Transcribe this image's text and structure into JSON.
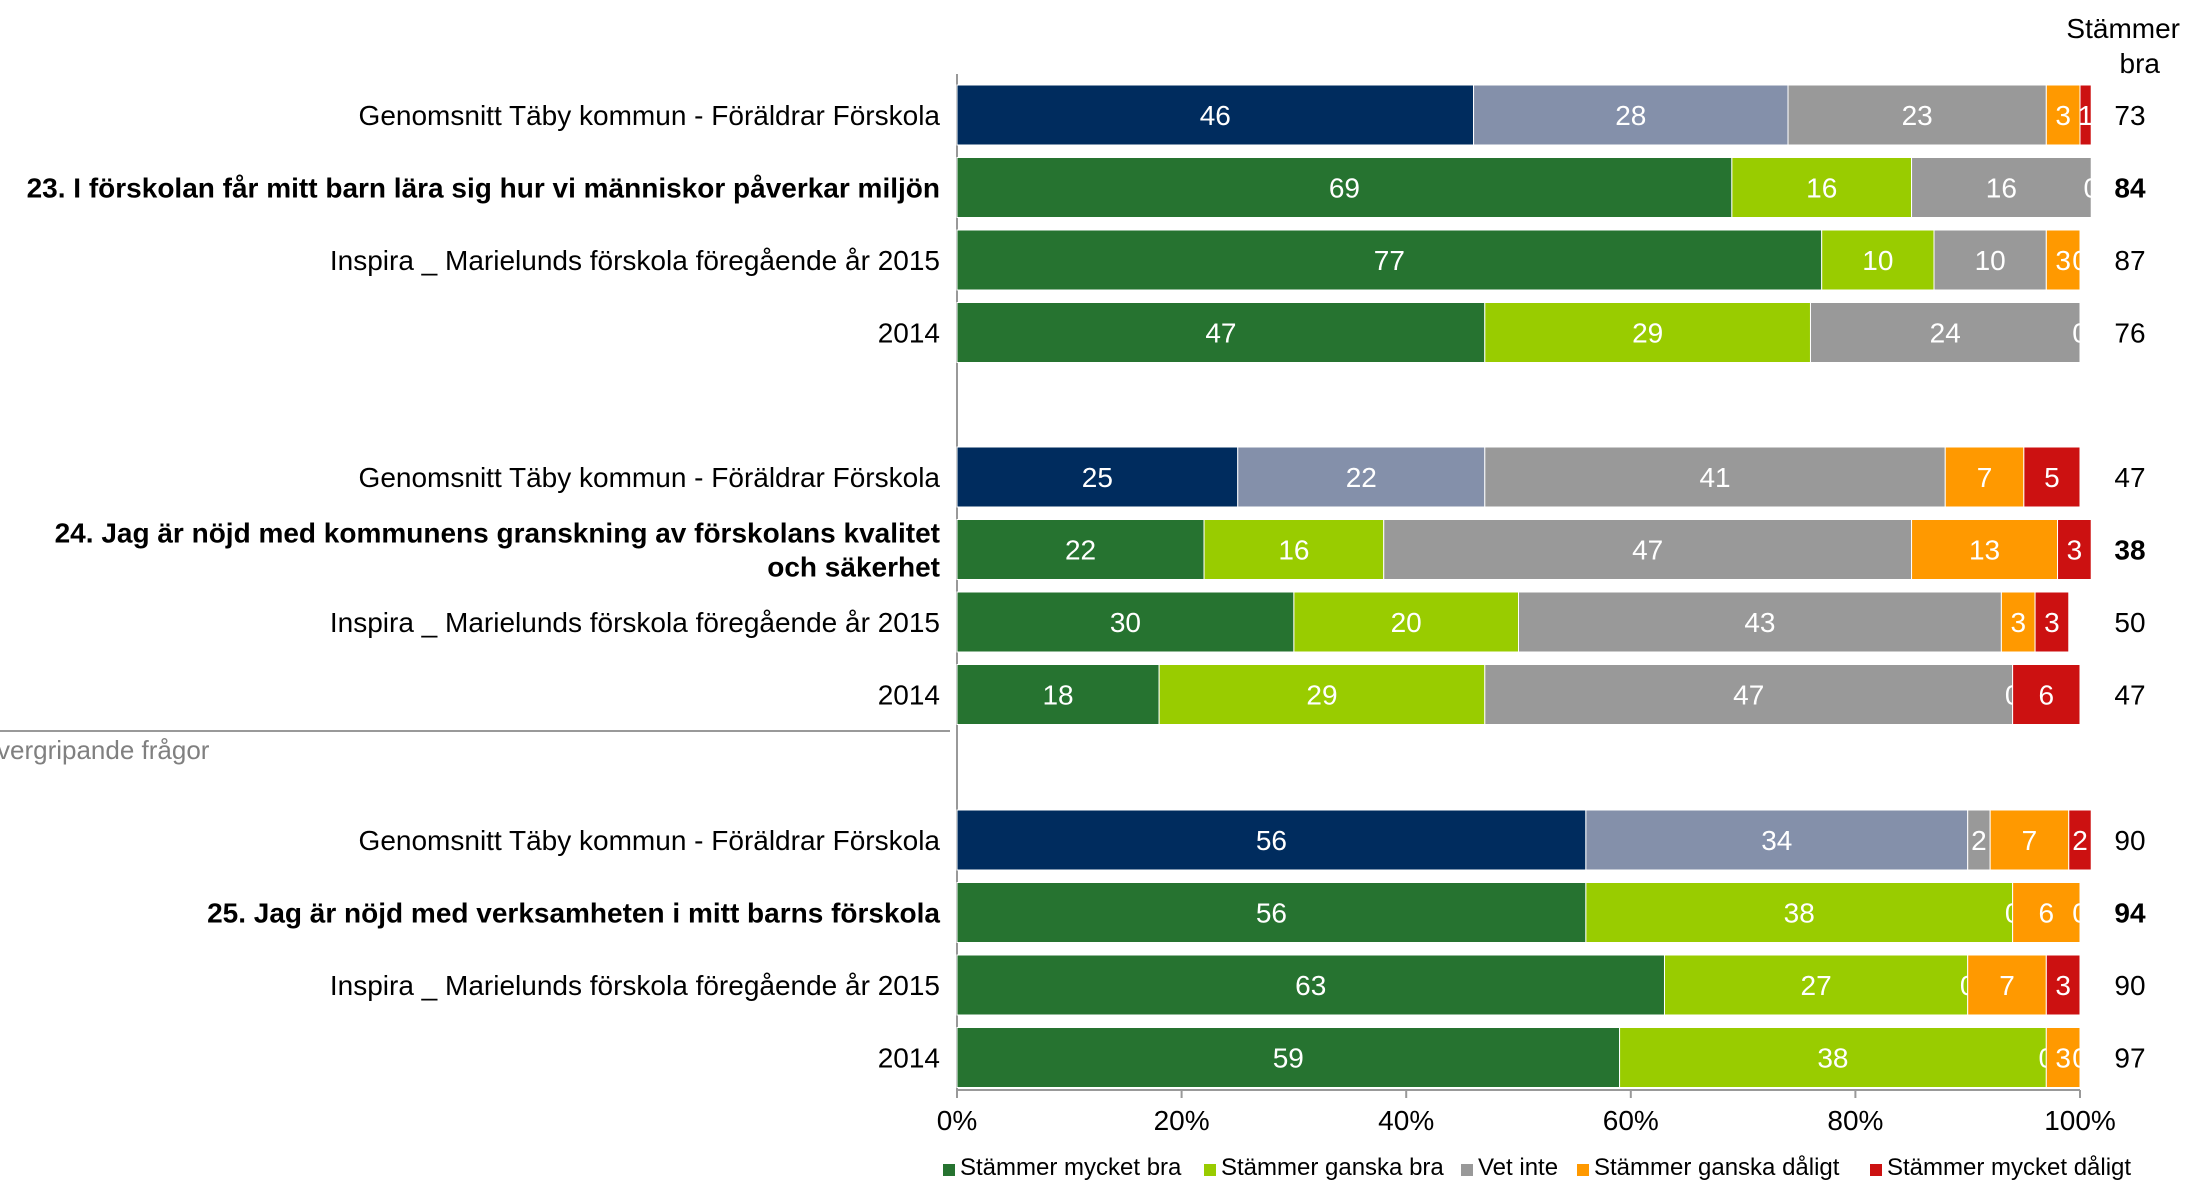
{
  "header": {
    "line1": "Stämmer",
    "line2": "bra"
  },
  "side_caption": "vergripande frågor",
  "colors": {
    "segments": [
      "#267330",
      "#99cc00",
      "#999999",
      "#ff9900",
      "#cc1111"
    ],
    "average_segments": [
      "#002c5e",
      "#8490aa",
      "#999999",
      "#ff9900",
      "#cc1111"
    ],
    "row_separator": "#ffffff"
  },
  "legend": [
    {
      "label": "Stämmer mycket bra",
      "color": "#267330"
    },
    {
      "label": "Stämmer ganska bra",
      "color": "#99cc00"
    },
    {
      "label": "Vet inte",
      "color": "#999999"
    },
    {
      "label": "Stämmer ganska dåligt",
      "color": "#ff9900"
    },
    {
      "label": "Stämmer mycket dåligt",
      "color": "#cc1111"
    }
  ],
  "chart_data": {
    "type": "bar",
    "orientation": "horizontal",
    "stacked": true,
    "xlim": [
      0,
      100
    ],
    "xticks": [
      "0%",
      "20%",
      "40%",
      "60%",
      "80%",
      "100%"
    ],
    "series_names": [
      "Stämmer mycket bra",
      "Stämmer ganska bra",
      "Vet inte",
      "Stämmer ganska dåligt",
      "Stämmer mycket dåligt"
    ],
    "groups": [
      {
        "rows": [
          {
            "label": [
              "Genomsnitt Täby kommun - Föräldrar Förskola"
            ],
            "bold": false,
            "average": true,
            "values": [
              46,
              28,
              23,
              3,
              1
            ],
            "value_labels": [
              "46",
              "28",
              "23",
              "3",
              "1"
            ],
            "stammer_bra": "73"
          },
          {
            "label": [
              "23. I förskolan får mitt barn lära sig hur vi människor påverkar miljön"
            ],
            "bold": true,
            "average": false,
            "values": [
              69,
              16,
              16,
              0,
              0
            ],
            "value_labels": [
              "69",
              "16",
              "16",
              "0",
              ""
            ],
            "stammer_bra": "84"
          },
          {
            "label": [
              "Inspira _ Marielunds förskola föregående år 2015"
            ],
            "bold": false,
            "average": false,
            "values": [
              77,
              10,
              10,
              3,
              0
            ],
            "value_labels": [
              "77",
              "10",
              "10",
              "3",
              "0"
            ],
            "stammer_bra": "87"
          },
          {
            "label": [
              "2014"
            ],
            "bold": false,
            "average": false,
            "values": [
              47,
              29,
              24,
              0,
              0
            ],
            "value_labels": [
              "47",
              "29",
              "24",
              "0",
              ""
            ],
            "stammer_bra": "76"
          }
        ]
      },
      {
        "rows": [
          {
            "label": [
              "Genomsnitt Täby kommun - Föräldrar Förskola"
            ],
            "bold": false,
            "average": true,
            "values": [
              25,
              22,
              41,
              7,
              5
            ],
            "value_labels": [
              "25",
              "22",
              "41",
              "7",
              "5"
            ],
            "stammer_bra": "47"
          },
          {
            "label": [
              "24. Jag är nöjd med kommunens granskning av förskolans kvalitet",
              "och säkerhet"
            ],
            "bold": true,
            "average": false,
            "values": [
              22,
              16,
              47,
              13,
              3
            ],
            "value_labels": [
              "22",
              "16",
              "47",
              "13",
              "3"
            ],
            "stammer_bra": "38"
          },
          {
            "label": [
              "Inspira _ Marielunds förskola föregående år 2015"
            ],
            "bold": false,
            "average": false,
            "values": [
              30,
              20,
              43,
              3,
              3
            ],
            "value_labels": [
              "30",
              "20",
              "43",
              "3",
              "3"
            ],
            "stammer_bra": "50"
          },
          {
            "label": [
              "2014"
            ],
            "bold": false,
            "average": false,
            "values": [
              18,
              29,
              47,
              0,
              6
            ],
            "value_labels": [
              "18",
              "29",
              "47",
              "0",
              "6"
            ],
            "stammer_bra": "47"
          }
        ]
      },
      {
        "rows": [
          {
            "label": [
              "Genomsnitt Täby kommun - Föräldrar Förskola"
            ],
            "bold": false,
            "average": true,
            "values": [
              56,
              34,
              2,
              7,
              2
            ],
            "value_labels": [
              "56",
              "34",
              "2",
              "7",
              "2"
            ],
            "stammer_bra": "90"
          },
          {
            "label": [
              "25. Jag är nöjd med verksamheten i mitt barns förskola"
            ],
            "bold": true,
            "average": false,
            "values": [
              56,
              38,
              0,
              6,
              0
            ],
            "value_labels": [
              "56",
              "38",
              "0",
              "6",
              "0"
            ],
            "stammer_bra": "94"
          },
          {
            "label": [
              "Inspira _ Marielunds förskola föregående år 2015"
            ],
            "bold": false,
            "average": false,
            "values": [
              63,
              27,
              0,
              7,
              3
            ],
            "value_labels": [
              "63",
              "27",
              "0",
              "7",
              "3"
            ],
            "stammer_bra": "90"
          },
          {
            "label": [
              "2014"
            ],
            "bold": false,
            "average": false,
            "values": [
              59,
              38,
              0,
              3,
              0
            ],
            "value_labels": [
              "59",
              "38",
              "0",
              "3",
              "0"
            ],
            "stammer_bra": "97"
          }
        ]
      }
    ]
  }
}
